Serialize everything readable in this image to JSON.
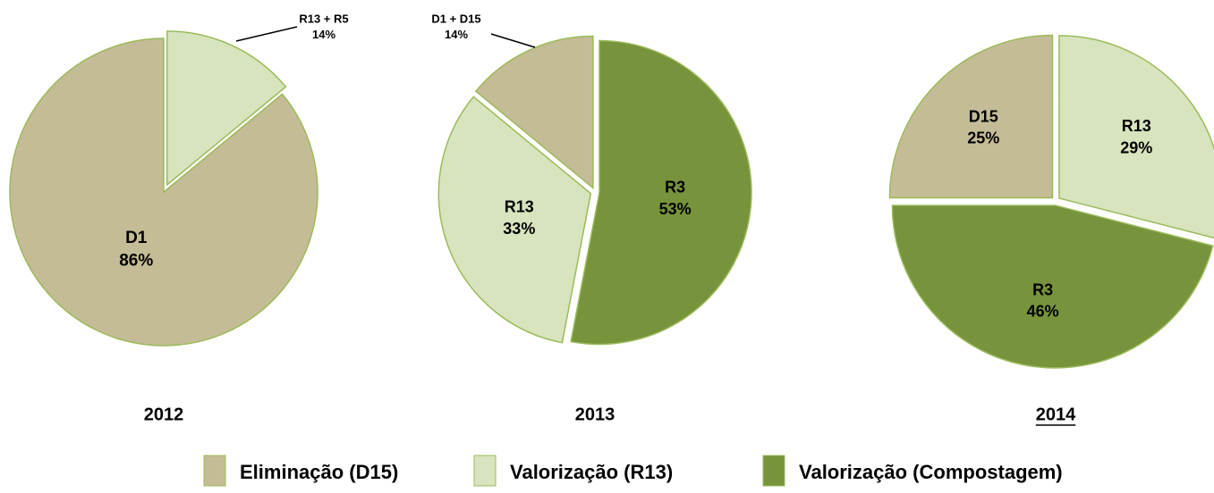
{
  "chart_data": [
    {
      "type": "pie",
      "title": "2012",
      "categories": [
        "R13 + R5",
        "D1"
      ],
      "values": [
        14,
        86
      ],
      "value_labels": [
        "14%",
        "86%"
      ],
      "colors": [
        "#d7e4bd",
        "#c4bc96"
      ]
    },
    {
      "type": "pie",
      "title": "2013",
      "categories": [
        "R3",
        "R13",
        "D1 + D15"
      ],
      "values": [
        53,
        33,
        14
      ],
      "value_labels": [
        "53%",
        "33%",
        "14%"
      ],
      "colors": [
        "#77933c",
        "#d7e4bd",
        "#c4bc96"
      ]
    },
    {
      "type": "pie",
      "title": "2014",
      "categories": [
        "R13",
        "R3",
        "D15"
      ],
      "values": [
        29,
        46,
        25
      ],
      "value_labels": [
        "29%",
        "46%",
        "25%"
      ],
      "colors": [
        "#d7e4bd",
        "#77933c",
        "#c4bc96"
      ]
    }
  ],
  "legend": [
    {
      "name": "Eliminação (D15)",
      "color": "#c4bc96"
    },
    {
      "name": "Valorização (R13)",
      "color": "#d7e4bd"
    },
    {
      "name": "Valorização (Compostagem)",
      "color": "#77933c"
    }
  ]
}
